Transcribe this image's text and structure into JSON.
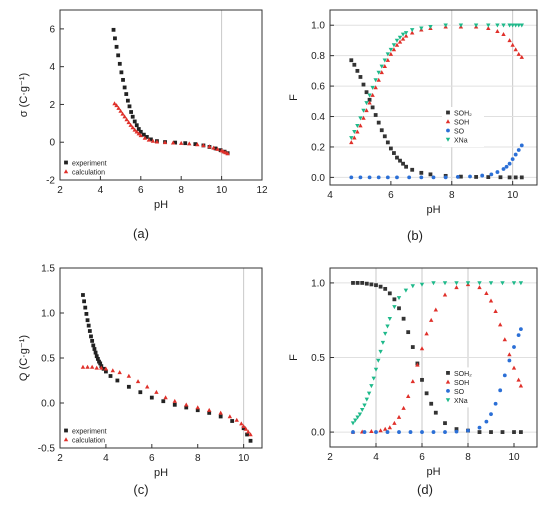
{
  "chart_data": [
    {
      "type": "scatter",
      "panel_label": "(a)",
      "xlabel": "pH",
      "ylabel": "σ (C·g⁻¹)",
      "xlim": [
        2,
        12
      ],
      "ylim": [
        -2,
        7
      ],
      "xticks": [
        "2",
        "4",
        "6",
        "8",
        "10",
        "12"
      ],
      "yticks": [
        "-2",
        "0",
        "2",
        "4",
        "6"
      ],
      "legend": "bottom-left",
      "series": [
        {
          "name": "experiment",
          "color": "#222222",
          "marker": "square",
          "x": [
            4.65,
            4.72,
            4.8,
            4.88,
            4.96,
            5.04,
            5.12,
            5.2,
            5.28,
            5.36,
            5.44,
            5.52,
            5.6,
            5.7,
            5.8,
            5.9,
            6.0,
            6.15,
            6.3,
            6.5,
            6.8,
            7.2,
            7.7,
            8.2,
            8.7,
            9.1,
            9.4,
            9.7,
            9.95,
            10.15,
            10.3
          ],
          "y": [
            5.95,
            5.5,
            5.05,
            4.6,
            4.15,
            3.7,
            3.3,
            2.9,
            2.55,
            2.2,
            1.9,
            1.6,
            1.35,
            1.1,
            0.9,
            0.7,
            0.55,
            0.4,
            0.28,
            0.15,
            0.06,
            0.01,
            -0.02,
            -0.05,
            -0.1,
            -0.17,
            -0.25,
            -0.33,
            -0.42,
            -0.5,
            -0.58
          ]
        },
        {
          "name": "calculation",
          "color": "#e0302a",
          "marker": "triangle",
          "x": [
            4.7,
            4.8,
            4.9,
            5.0,
            5.1,
            5.2,
            5.3,
            5.4,
            5.5,
            5.6,
            5.7,
            5.8,
            5.9,
            6.0,
            6.2,
            6.4,
            6.6,
            6.8,
            7.2,
            7.6,
            8.0,
            8.4,
            8.8,
            9.1,
            9.4,
            9.6,
            9.8,
            10.0,
            10.1,
            10.2,
            10.3
          ],
          "y": [
            2.05,
            1.95,
            1.8,
            1.65,
            1.5,
            1.35,
            1.2,
            1.05,
            0.9,
            0.78,
            0.65,
            0.55,
            0.45,
            0.36,
            0.22,
            0.12,
            0.06,
            0.02,
            -0.01,
            -0.03,
            -0.05,
            -0.08,
            -0.12,
            -0.17,
            -0.23,
            -0.3,
            -0.37,
            -0.45,
            -0.5,
            -0.55,
            -0.6
          ]
        }
      ]
    },
    {
      "type": "scatter",
      "panel_label": "(b)",
      "xlabel": "pH",
      "ylabel": "F",
      "xlim": [
        4,
        10.8
      ],
      "ylim": [
        -0.05,
        1.1
      ],
      "xticks": [
        "4",
        "6",
        "8",
        "10"
      ],
      "yticks": [
        "0.0",
        "0.2",
        "0.4",
        "0.6",
        "0.8",
        "1.0"
      ],
      "legend": "center-right",
      "series": [
        {
          "name": "SOH₂",
          "color": "#333333",
          "marker": "square",
          "x": [
            4.7,
            4.8,
            4.9,
            5.0,
            5.1,
            5.2,
            5.3,
            5.4,
            5.5,
            5.6,
            5.7,
            5.8,
            5.9,
            6.0,
            6.1,
            6.2,
            6.3,
            6.4,
            6.5,
            6.7,
            7.0,
            7.3,
            7.8,
            8.3,
            8.8,
            9.2,
            9.6,
            9.9,
            10.1,
            10.3
          ],
          "y": [
            0.77,
            0.74,
            0.7,
            0.66,
            0.61,
            0.56,
            0.51,
            0.46,
            0.41,
            0.36,
            0.31,
            0.27,
            0.23,
            0.19,
            0.16,
            0.13,
            0.11,
            0.09,
            0.07,
            0.05,
            0.03,
            0.02,
            0.01,
            0.005,
            0.003,
            0.002,
            0.001,
            0.0,
            0.0,
            0.0
          ]
        },
        {
          "name": "SOH",
          "color": "#e0302a",
          "marker": "triangle",
          "x": [
            4.7,
            4.8,
            4.9,
            5.0,
            5.1,
            5.2,
            5.3,
            5.4,
            5.5,
            5.6,
            5.7,
            5.8,
            5.9,
            6.0,
            6.1,
            6.2,
            6.3,
            6.4,
            6.5,
            6.7,
            7.0,
            7.3,
            7.8,
            8.3,
            8.8,
            9.2,
            9.5,
            9.7,
            9.9,
            10.0,
            10.1,
            10.2,
            10.3
          ],
          "y": [
            0.23,
            0.26,
            0.3,
            0.34,
            0.39,
            0.44,
            0.49,
            0.54,
            0.59,
            0.64,
            0.69,
            0.73,
            0.77,
            0.81,
            0.84,
            0.87,
            0.89,
            0.91,
            0.93,
            0.95,
            0.97,
            0.98,
            0.99,
            0.99,
            0.99,
            0.98,
            0.96,
            0.94,
            0.9,
            0.87,
            0.84,
            0.81,
            0.79
          ]
        },
        {
          "name": "SO",
          "color": "#2b6fd6",
          "marker": "circle",
          "x": [
            4.7,
            5.0,
            5.3,
            5.6,
            5.9,
            6.2,
            6.6,
            7.0,
            7.4,
            7.8,
            8.2,
            8.6,
            9.0,
            9.3,
            9.5,
            9.7,
            9.8,
            9.9,
            10.0,
            10.1,
            10.2,
            10.3
          ],
          "y": [
            0.0,
            0.0,
            0.0,
            0.0,
            0.0,
            0.0,
            0.0,
            0.0,
            0.0,
            0.0,
            0.003,
            0.006,
            0.012,
            0.02,
            0.035,
            0.055,
            0.07,
            0.09,
            0.12,
            0.15,
            0.18,
            0.21
          ]
        },
        {
          "name": "XNa",
          "color": "#1eb98a",
          "marker": "triangle-down",
          "x": [
            4.7,
            4.8,
            4.9,
            5.0,
            5.1,
            5.2,
            5.3,
            5.4,
            5.5,
            5.6,
            5.7,
            5.8,
            5.9,
            6.0,
            6.1,
            6.2,
            6.3,
            6.4,
            6.5,
            6.7,
            7.0,
            7.3,
            7.8,
            8.3,
            8.8,
            9.2,
            9.5,
            9.7,
            9.9,
            10.0,
            10.1,
            10.2,
            10.3
          ],
          "y": [
            0.26,
            0.3,
            0.34,
            0.39,
            0.44,
            0.49,
            0.54,
            0.59,
            0.64,
            0.69,
            0.73,
            0.77,
            0.81,
            0.84,
            0.87,
            0.9,
            0.92,
            0.94,
            0.95,
            0.97,
            0.98,
            0.99,
            1.0,
            1.0,
            1.0,
            1.0,
            1.0,
            1.0,
            1.0,
            1.0,
            1.0,
            1.0,
            1.0
          ]
        }
      ]
    },
    {
      "type": "scatter",
      "panel_label": "(c)",
      "xlabel": "pH",
      "ylabel": "Q (C·g⁻¹)",
      "xlim": [
        2,
        10.8
      ],
      "ylim": [
        -0.5,
        1.5
      ],
      "xticks": [
        "2",
        "4",
        "6",
        "8",
        "10"
      ],
      "yticks": [
        "-0.5",
        "0.0",
        "0.5",
        "1.0",
        "1.5"
      ],
      "legend": "bottom-left",
      "series": [
        {
          "name": "experiment",
          "color": "#222222",
          "marker": "square",
          "x": [
            3.0,
            3.05,
            3.1,
            3.15,
            3.2,
            3.25,
            3.3,
            3.35,
            3.4,
            3.45,
            3.5,
            3.55,
            3.6,
            3.65,
            3.7,
            3.75,
            3.8,
            3.9,
            4.0,
            4.2,
            4.5,
            5.0,
            5.5,
            6.0,
            6.5,
            7.0,
            7.5,
            8.0,
            8.5,
            9.0,
            9.5,
            10.0,
            10.15,
            10.3
          ],
          "y": [
            1.2,
            1.13,
            1.06,
            0.99,
            0.92,
            0.86,
            0.8,
            0.74,
            0.69,
            0.64,
            0.6,
            0.56,
            0.52,
            0.49,
            0.46,
            0.44,
            0.41,
            0.38,
            0.35,
            0.3,
            0.25,
            0.18,
            0.12,
            0.06,
            0.02,
            -0.02,
            -0.05,
            -0.08,
            -0.11,
            -0.15,
            -0.2,
            -0.28,
            -0.35,
            -0.42
          ]
        },
        {
          "name": "calculation",
          "color": "#e0302a",
          "marker": "triangle",
          "x": [
            3.0,
            3.2,
            3.4,
            3.6,
            3.8,
            4.0,
            4.3,
            4.6,
            5.0,
            5.4,
            5.8,
            6.2,
            6.6,
            7.0,
            7.5,
            8.0,
            8.5,
            9.0,
            9.4,
            9.7,
            9.9,
            10.0,
            10.1,
            10.2,
            10.3
          ],
          "y": [
            0.4,
            0.4,
            0.4,
            0.39,
            0.39,
            0.38,
            0.36,
            0.34,
            0.3,
            0.24,
            0.18,
            0.12,
            0.06,
            0.02,
            -0.02,
            -0.05,
            -0.08,
            -0.11,
            -0.15,
            -0.19,
            -0.23,
            -0.26,
            -0.29,
            -0.32,
            -0.35
          ]
        }
      ]
    },
    {
      "type": "scatter",
      "panel_label": "(d)",
      "xlabel": "pH",
      "ylabel": "F",
      "xlim": [
        2,
        11
      ],
      "ylim": [
        -0.1,
        1.1
      ],
      "xticks": [
        "2",
        "4",
        "6",
        "8",
        "10"
      ],
      "yticks": [
        "0.0",
        "0.5",
        "1.0"
      ],
      "legend": "center-right",
      "series": [
        {
          "name": "SOH₂",
          "color": "#333333",
          "marker": "square",
          "x": [
            3.0,
            3.2,
            3.4,
            3.6,
            3.8,
            4.0,
            4.2,
            4.4,
            4.6,
            4.8,
            5.0,
            5.2,
            5.4,
            5.6,
            5.8,
            6.0,
            6.2,
            6.4,
            6.6,
            7.0,
            7.5,
            8.0,
            8.5,
            9.0,
            9.5,
            10.0,
            10.3
          ],
          "y": [
            1.0,
            1.0,
            1.0,
            0.995,
            0.99,
            0.985,
            0.975,
            0.96,
            0.93,
            0.89,
            0.83,
            0.76,
            0.67,
            0.57,
            0.46,
            0.35,
            0.26,
            0.19,
            0.13,
            0.06,
            0.02,
            0.01,
            0.0,
            0.0,
            0.0,
            0.0,
            0.0
          ]
        },
        {
          "name": "SOH",
          "color": "#e0302a",
          "marker": "triangle",
          "x": [
            3.0,
            3.4,
            3.8,
            4.2,
            4.4,
            4.6,
            4.8,
            5.0,
            5.2,
            5.4,
            5.6,
            5.8,
            6.0,
            6.2,
            6.4,
            6.6,
            7.0,
            7.5,
            8.0,
            8.5,
            8.8,
            9.0,
            9.2,
            9.4,
            9.6,
            9.8,
            10.0,
            10.2,
            10.3
          ],
          "y": [
            0.0,
            0.002,
            0.005,
            0.01,
            0.02,
            0.03,
            0.06,
            0.1,
            0.16,
            0.24,
            0.34,
            0.45,
            0.56,
            0.66,
            0.75,
            0.82,
            0.92,
            0.97,
            0.99,
            0.97,
            0.93,
            0.88,
            0.81,
            0.72,
            0.62,
            0.52,
            0.43,
            0.35,
            0.31
          ]
        },
        {
          "name": "SO",
          "color": "#2b6fd6",
          "marker": "circle",
          "x": [
            3.0,
            3.5,
            4.0,
            4.5,
            5.0,
            5.5,
            6.0,
            6.5,
            7.0,
            7.5,
            8.0,
            8.5,
            8.8,
            9.0,
            9.2,
            9.4,
            9.6,
            9.8,
            10.0,
            10.2,
            10.3
          ],
          "y": [
            0.0,
            0.0,
            0.0,
            0.0,
            0.0,
            0.0,
            0.0,
            0.0,
            0.0,
            0.003,
            0.01,
            0.03,
            0.07,
            0.12,
            0.19,
            0.28,
            0.38,
            0.48,
            0.57,
            0.65,
            0.69
          ]
        },
        {
          "name": "XNa",
          "color": "#1eb98a",
          "marker": "triangle-down",
          "x": [
            3.0,
            3.1,
            3.2,
            3.3,
            3.4,
            3.5,
            3.6,
            3.7,
            3.8,
            3.9,
            4.0,
            4.1,
            4.2,
            4.3,
            4.4,
            4.5,
            4.6,
            4.8,
            5.0,
            5.3,
            5.6,
            6.0,
            6.5,
            7.0,
            7.5,
            8.0,
            8.5,
            9.0,
            9.5,
            10.0,
            10.3
          ],
          "y": [
            0.06,
            0.08,
            0.1,
            0.12,
            0.15,
            0.18,
            0.22,
            0.26,
            0.31,
            0.36,
            0.42,
            0.48,
            0.54,
            0.6,
            0.66,
            0.71,
            0.76,
            0.84,
            0.9,
            0.95,
            0.98,
            0.99,
            1.0,
            1.0,
            1.0,
            1.0,
            1.0,
            1.0,
            1.0,
            1.0,
            1.0
          ]
        }
      ]
    }
  ]
}
